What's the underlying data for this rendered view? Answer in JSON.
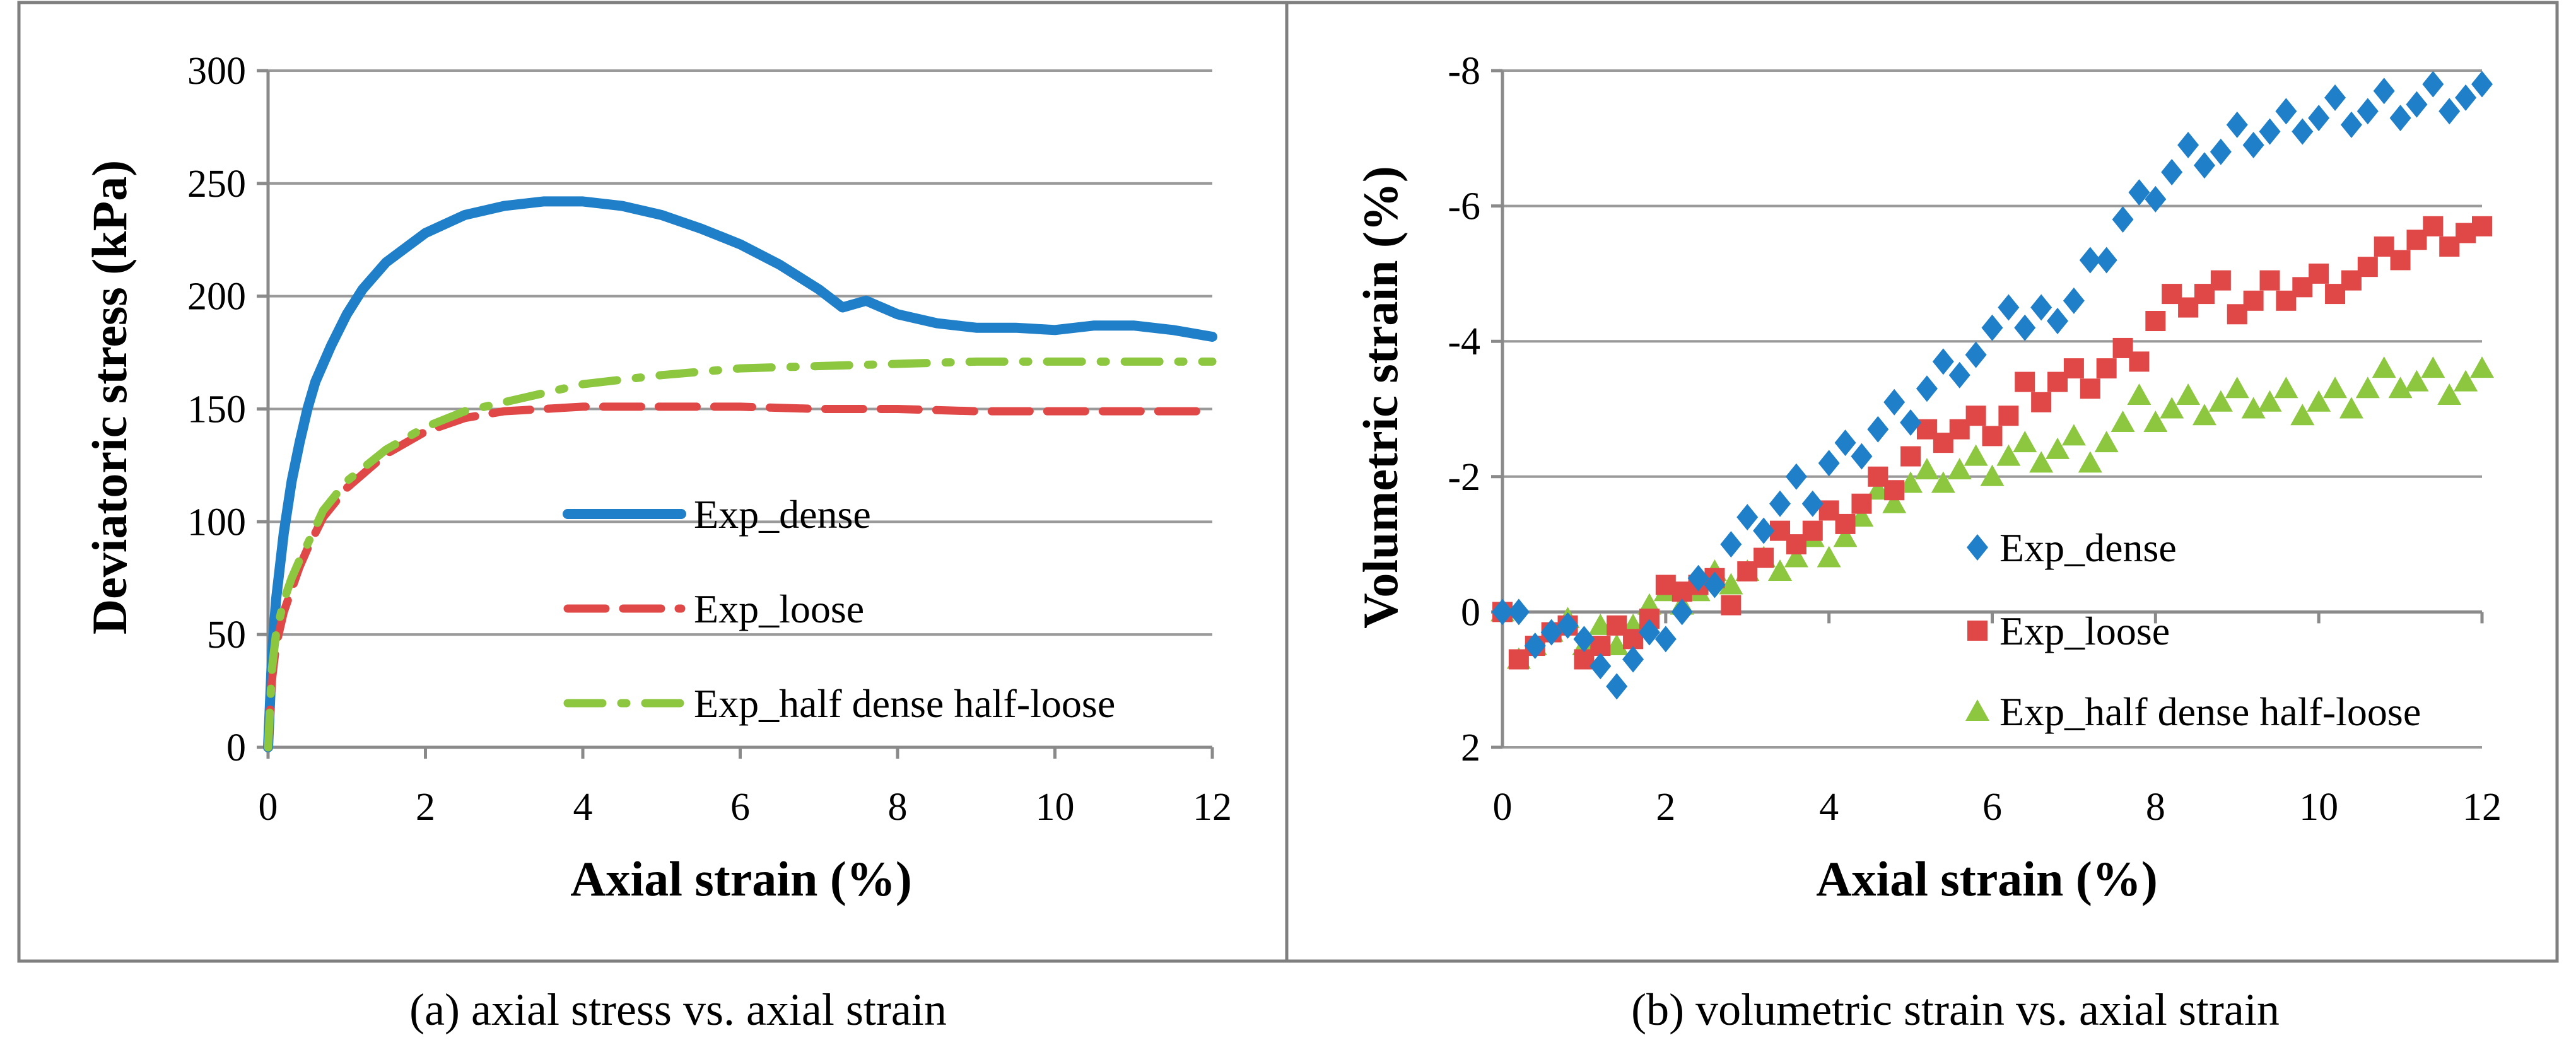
{
  "colors": {
    "dense": "#1f7fc8",
    "loose": "#e04848",
    "half": "#8dc63f"
  },
  "captions": {
    "a": "(a) axial stress vs. axial strain",
    "b": "(b)  volumetric strain vs. axial strain"
  },
  "chart_data": [
    {
      "type": "line",
      "title": "",
      "xlabel": "Axial strain (%)",
      "ylabel": "Deviatoric stress (kPa)",
      "xlim": [
        0,
        12
      ],
      "ylim": [
        0,
        300
      ],
      "xticks": [
        "0",
        "2",
        "4",
        "6",
        "8",
        "10",
        "12"
      ],
      "yticks": [
        "0",
        "50",
        "100",
        "150",
        "200",
        "250",
        "300"
      ],
      "grid": true,
      "legend_position": "center-right",
      "series": [
        {
          "name": "Exp_dense",
          "style": "solid",
          "x": [
            0,
            0.05,
            0.1,
            0.2,
            0.3,
            0.4,
            0.5,
            0.6,
            0.8,
            1.0,
            1.2,
            1.5,
            2.0,
            2.5,
            3.0,
            3.5,
            4.0,
            4.5,
            5.0,
            5.5,
            6.0,
            6.5,
            7.0,
            7.3,
            7.6,
            8.0,
            8.5,
            9.0,
            9.5,
            10.0,
            10.5,
            11.0,
            11.5,
            12.0
          ],
          "y": [
            0,
            40,
            65,
            95,
            118,
            135,
            150,
            162,
            178,
            192,
            203,
            215,
            228,
            236,
            240,
            242,
            242,
            240,
            236,
            230,
            223,
            214,
            203,
            195,
            198,
            192,
            188,
            186,
            186,
            185,
            187,
            187,
            185,
            182
          ]
        },
        {
          "name": "Exp_loose",
          "style": "dashed",
          "x": [
            0,
            0.05,
            0.1,
            0.2,
            0.3,
            0.4,
            0.5,
            0.7,
            1.0,
            1.5,
            2.0,
            2.5,
            3.0,
            3.5,
            4.0,
            5.0,
            6.0,
            7.0,
            8.0,
            9.0,
            10.0,
            11.0,
            12.0
          ],
          "y": [
            0,
            30,
            45,
            60,
            70,
            80,
            88,
            102,
            115,
            130,
            140,
            146,
            149,
            150,
            151,
            151,
            151,
            150,
            150,
            149,
            149,
            149,
            149
          ]
        },
        {
          "name": "Exp_half dense half-loose",
          "style": "dash-dot",
          "x": [
            0,
            0.05,
            0.1,
            0.2,
            0.3,
            0.4,
            0.5,
            0.7,
            1.0,
            1.5,
            2.0,
            2.5,
            3.0,
            3.5,
            4.0,
            5.0,
            6.0,
            7.0,
            8.0,
            9.0,
            10.0,
            11.0,
            12.0
          ],
          "y": [
            0,
            35,
            50,
            65,
            75,
            83,
            90,
            105,
            118,
            132,
            142,
            149,
            153,
            157,
            161,
            165,
            168,
            169,
            170,
            171,
            171,
            171,
            171
          ]
        }
      ]
    },
    {
      "type": "scatter",
      "title": "",
      "xlabel": "Axial strain (%)",
      "ylabel": "Volumetric strain (%)",
      "xlim": [
        0,
        12
      ],
      "ylim": [
        2,
        -8
      ],
      "y_inverted": true,
      "xticks": [
        "0",
        "2",
        "4",
        "6",
        "8",
        "10",
        "12"
      ],
      "yticks": [
        "-8",
        "-6",
        "-4",
        "-2",
        "0",
        "2"
      ],
      "grid": true,
      "legend_position": "lower-right",
      "series": [
        {
          "name": "Exp_dense",
          "marker": "diamond",
          "x": [
            0,
            0.2,
            0.4,
            0.6,
            0.8,
            1.0,
            1.2,
            1.4,
            1.6,
            1.8,
            2.0,
            2.2,
            2.4,
            2.6,
            2.8,
            3.0,
            3.2,
            3.4,
            3.6,
            3.8,
            4.0,
            4.2,
            4.4,
            4.6,
            4.8,
            5.0,
            5.2,
            5.4,
            5.6,
            5.8,
            6.0,
            6.2,
            6.4,
            6.6,
            6.8,
            7.0,
            7.2,
            7.4,
            7.6,
            7.8,
            8.0,
            8.2,
            8.4,
            8.6,
            8.8,
            9.0,
            9.2,
            9.4,
            9.6,
            9.8,
            10.0,
            10.2,
            10.4,
            10.6,
            10.8,
            11.0,
            11.2,
            11.4,
            11.6,
            11.8,
            12.0
          ],
          "y": [
            0,
            0,
            0.5,
            0.3,
            0.2,
            0.4,
            0.8,
            1.1,
            0.7,
            0.3,
            0.4,
            0,
            -0.5,
            -0.4,
            -1.0,
            -1.4,
            -1.2,
            -1.6,
            -2.0,
            -1.6,
            -2.2,
            -2.5,
            -2.3,
            -2.7,
            -3.1,
            -2.8,
            -3.3,
            -3.7,
            -3.5,
            -3.8,
            -4.2,
            -4.5,
            -4.2,
            -4.5,
            -4.3,
            -4.6,
            -5.2,
            -5.2,
            -5.8,
            -6.2,
            -6.1,
            -6.5,
            -6.9,
            -6.6,
            -6.8,
            -7.2,
            -6.9,
            -7.1,
            -7.4,
            -7.1,
            -7.3,
            -7.6,
            -7.2,
            -7.4,
            -7.7,
            -7.3,
            -7.5,
            -7.8,
            -7.4,
            -7.6,
            -7.8
          ]
        },
        {
          "name": "Exp_loose",
          "marker": "square",
          "x": [
            0,
            0.2,
            0.4,
            0.6,
            0.8,
            1.0,
            1.2,
            1.4,
            1.6,
            1.8,
            2.0,
            2.2,
            2.4,
            2.6,
            2.8,
            3.0,
            3.2,
            3.4,
            3.6,
            3.8,
            4.0,
            4.2,
            4.4,
            4.6,
            4.8,
            5.0,
            5.2,
            5.4,
            5.6,
            5.8,
            6.0,
            6.2,
            6.4,
            6.6,
            6.8,
            7.0,
            7.2,
            7.4,
            7.6,
            7.8,
            8.0,
            8.2,
            8.4,
            8.6,
            8.8,
            9.0,
            9.2,
            9.4,
            9.6,
            9.8,
            10.0,
            10.2,
            10.4,
            10.6,
            10.8,
            11.0,
            11.2,
            11.4,
            11.6,
            11.8,
            12.0
          ],
          "y": [
            0,
            0.7,
            0.5,
            0.3,
            0.2,
            0.7,
            0.5,
            0.2,
            0.4,
            0.1,
            -0.4,
            -0.3,
            -0.4,
            -0.5,
            -0.1,
            -0.6,
            -0.8,
            -1.2,
            -1.0,
            -1.2,
            -1.5,
            -1.3,
            -1.6,
            -2.0,
            -1.8,
            -2.3,
            -2.7,
            -2.5,
            -2.7,
            -2.9,
            -2.6,
            -2.9,
            -3.4,
            -3.1,
            -3.4,
            -3.6,
            -3.3,
            -3.6,
            -3.9,
            -3.7,
            -4.3,
            -4.7,
            -4.5,
            -4.7,
            -4.9,
            -4.4,
            -4.6,
            -4.9,
            -4.6,
            -4.8,
            -5.0,
            -4.7,
            -4.9,
            -5.1,
            -5.4,
            -5.2,
            -5.5,
            -5.7,
            -5.4,
            -5.6,
            -5.7
          ]
        },
        {
          "name": "Exp_half dense half-loose",
          "marker": "triangle",
          "x": [
            0,
            0.2,
            0.4,
            0.6,
            0.8,
            1.0,
            1.2,
            1.4,
            1.6,
            1.8,
            2.0,
            2.2,
            2.4,
            2.6,
            2.8,
            3.0,
            3.2,
            3.4,
            3.6,
            3.8,
            4.0,
            4.2,
            4.4,
            4.6,
            4.8,
            5.0,
            5.2,
            5.4,
            5.6,
            5.8,
            6.0,
            6.2,
            6.4,
            6.6,
            6.8,
            7.0,
            7.2,
            7.4,
            7.6,
            7.8,
            8.0,
            8.2,
            8.4,
            8.6,
            8.8,
            9.0,
            9.2,
            9.4,
            9.6,
            9.8,
            10.0,
            10.2,
            10.4,
            10.6,
            10.8,
            11.0,
            11.2,
            11.4,
            11.6,
            11.8,
            12.0
          ],
          "y": [
            0,
            0.7,
            0.5,
            0.3,
            0.1,
            0.5,
            0.2,
            0.5,
            0.2,
            -0.1,
            -0.3,
            -0.1,
            -0.3,
            -0.6,
            -0.4,
            -0.6,
            -0.8,
            -0.6,
            -0.8,
            -1.1,
            -0.8,
            -1.1,
            -1.4,
            -1.8,
            -1.6,
            -1.9,
            -2.1,
            -1.9,
            -2.1,
            -2.3,
            -2.0,
            -2.3,
            -2.5,
            -2.2,
            -2.4,
            -2.6,
            -2.2,
            -2.5,
            -2.8,
            -3.2,
            -2.8,
            -3.0,
            -3.2,
            -2.9,
            -3.1,
            -3.3,
            -3.0,
            -3.1,
            -3.3,
            -2.9,
            -3.1,
            -3.3,
            -3.0,
            -3.3,
            -3.6,
            -3.3,
            -3.4,
            -3.6,
            -3.2,
            -3.4,
            -3.6
          ]
        }
      ]
    }
  ]
}
